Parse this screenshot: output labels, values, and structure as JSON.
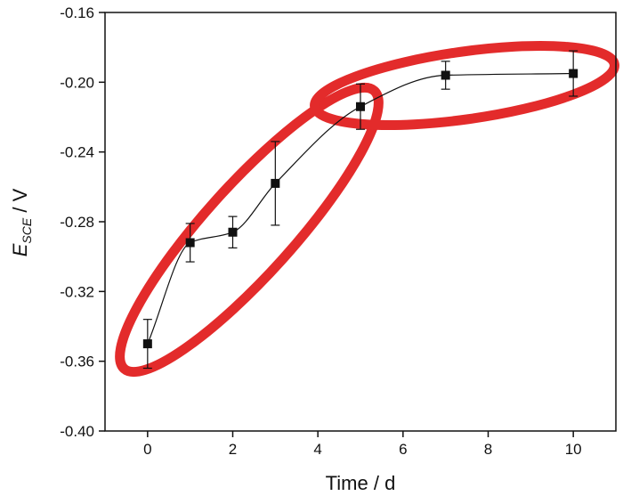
{
  "chart_data": {
    "type": "scatter",
    "xlabel": "Time / d",
    "ylabel_main": "E",
    "ylabel_sub": "SCE",
    "ylabel_unit": " / V",
    "xlim": [
      -1,
      11
    ],
    "ylim": [
      -0.4,
      -0.16
    ],
    "x_ticks": [
      0,
      2,
      4,
      6,
      8,
      10
    ],
    "x_tick_labels": [
      "0",
      "2",
      "4",
      "6",
      "8",
      "10"
    ],
    "y_ticks": [
      -0.4,
      -0.36,
      -0.32,
      -0.28,
      -0.24,
      -0.2,
      -0.16
    ],
    "y_tick_labels": [
      "-0.40",
      "-0.36",
      "-0.32",
      "-0.28",
      "-0.24",
      "-0.20",
      "-0.16"
    ],
    "grid": false,
    "legend": "none",
    "series": [
      {
        "x": [
          0,
          1,
          2,
          3,
          5,
          7,
          10
        ],
        "y": [
          -0.35,
          -0.292,
          -0.286,
          -0.258,
          -0.214,
          -0.196,
          -0.195
        ],
        "err": [
          0.014,
          0.011,
          0.009,
          0.024,
          0.013,
          0.008,
          0.013
        ],
        "marker": "square",
        "color": "#111111",
        "line": "smooth"
      }
    ],
    "annotations": [
      {
        "shape": "ellipse",
        "color": "#e32b2b",
        "encloses_x": [
          0,
          5
        ]
      },
      {
        "shape": "ellipse",
        "color": "#e32b2b",
        "encloses_x": [
          5,
          10
        ]
      }
    ]
  }
}
